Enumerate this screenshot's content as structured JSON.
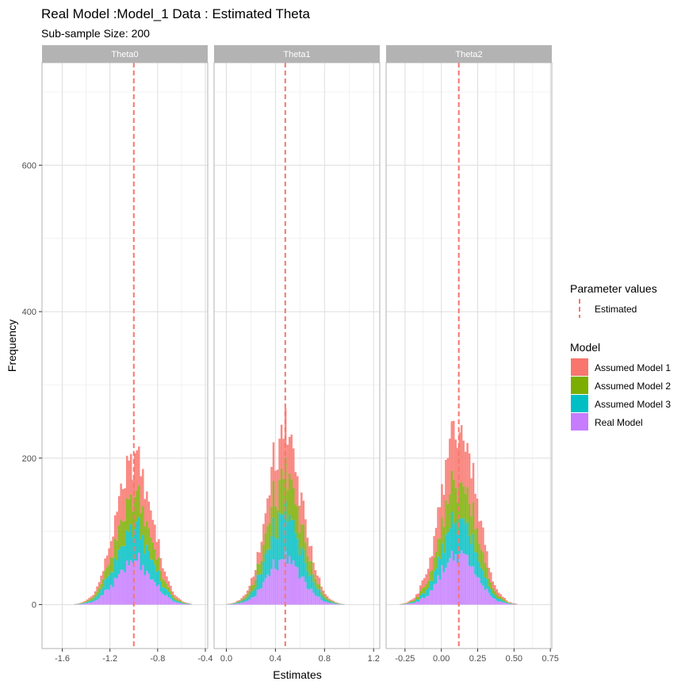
{
  "chart_data": {
    "type": "histogram",
    "title": "Real Model :Model_1 Data : Estimated Theta",
    "subtitle": "Sub-sample Size: 200",
    "xlabel": "Estimates",
    "ylabel": "Frequency",
    "y_range": [
      -60,
      740
    ],
    "y_ticks": [
      0,
      200,
      400,
      600
    ],
    "stacked": true,
    "legend_position": "right",
    "grid": true,
    "colors": {
      "Assumed Model 1": "#F8766D",
      "Assumed Model 2": "#7CAE00",
      "Assumed Model 3": "#00BFC4",
      "Real Model": "#C77CFF",
      "estimated_line": "#F8766D",
      "strip": "#B3B3B3",
      "grid": "#DEDEDE"
    },
    "legend": {
      "line_title": "Parameter values",
      "line_entries": [
        "Estimated"
      ],
      "fill_title": "Model",
      "fill_entries": [
        "Assumed Model 1",
        "Assumed Model 2",
        "Assumed Model 3",
        "Real Model"
      ]
    },
    "panels": [
      {
        "strip": "Theta0",
        "x_range": [
          -1.77,
          -0.38
        ],
        "x_ticks": [
          "-1.6",
          "-1.2",
          "-0.8",
          "-0.4"
        ],
        "x_tick_values": [
          -1.6,
          -1.2,
          -0.8,
          -0.4
        ],
        "estimated": -1.0,
        "center": -1.0,
        "sd": 0.15,
        "bin_start": -1.75,
        "bin_width": 0.0167,
        "bins": 80,
        "peak_total": 200,
        "shares": [
          0.27,
          0.22,
          0.22,
          0.29
        ]
      },
      {
        "strip": "Theta1",
        "x_range": [
          -0.1,
          1.25
        ],
        "x_ticks": [
          "0.0",
          "0.4",
          "0.8",
          "1.2"
        ],
        "x_tick_values": [
          0.0,
          0.4,
          0.8,
          1.2
        ],
        "estimated": 0.48,
        "center": 0.48,
        "sd": 0.14,
        "bin_start": -0.08,
        "bin_width": 0.0163,
        "bins": 80,
        "peak_total": 235,
        "shares": [
          0.26,
          0.22,
          0.25,
          0.27
        ]
      },
      {
        "strip": "Theta2",
        "x_range": [
          -0.38,
          0.76
        ],
        "x_ticks": [
          "-0.25",
          "0.00",
          "0.25",
          "0.50",
          "0.75"
        ],
        "x_tick_values": [
          -0.25,
          0.0,
          0.25,
          0.5,
          0.75
        ],
        "estimated": 0.12,
        "center": 0.12,
        "sd": 0.12,
        "bin_start": -0.34,
        "bin_width": 0.0135,
        "bins": 80,
        "peak_total": 250,
        "shares": [
          0.3,
          0.22,
          0.2,
          0.28
        ]
      }
    ]
  }
}
